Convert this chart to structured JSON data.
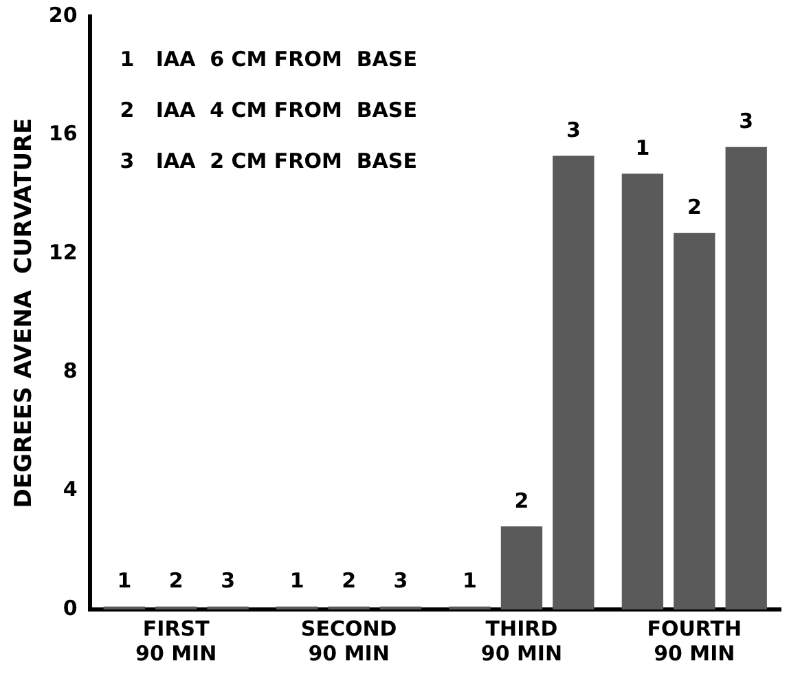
{
  "chart_data": {
    "type": "bar",
    "ylabel": "DEGREES AVENA  CURVATURE",
    "categories": [
      "FIRST 90 MIN",
      "SECOND 90 MIN",
      "THIRD 90 MIN",
      "FOURTH 90 MIN"
    ],
    "series": [
      {
        "name": "1",
        "color": "#5a5a5a",
        "values": [
          0.1,
          0.1,
          0.1,
          14.7
        ]
      },
      {
        "name": "2",
        "color": "#5a5a5a",
        "values": [
          0.1,
          0.1,
          2.8,
          12.7
        ]
      },
      {
        "name": "3",
        "color": "#5a5a5a",
        "values": [
          0.1,
          0.1,
          15.3,
          15.6
        ]
      }
    ],
    "ylim": [
      0,
      20
    ],
    "yticks": [
      0,
      4,
      8,
      12,
      16,
      20
    ],
    "grid": false,
    "legend": false,
    "annotations": [
      "1   IAA  6 CM FROM  BASE",
      "2   IAA  4 CM FROM  BASE",
      "3   IAA  2 CM FROM  BASE"
    ]
  }
}
